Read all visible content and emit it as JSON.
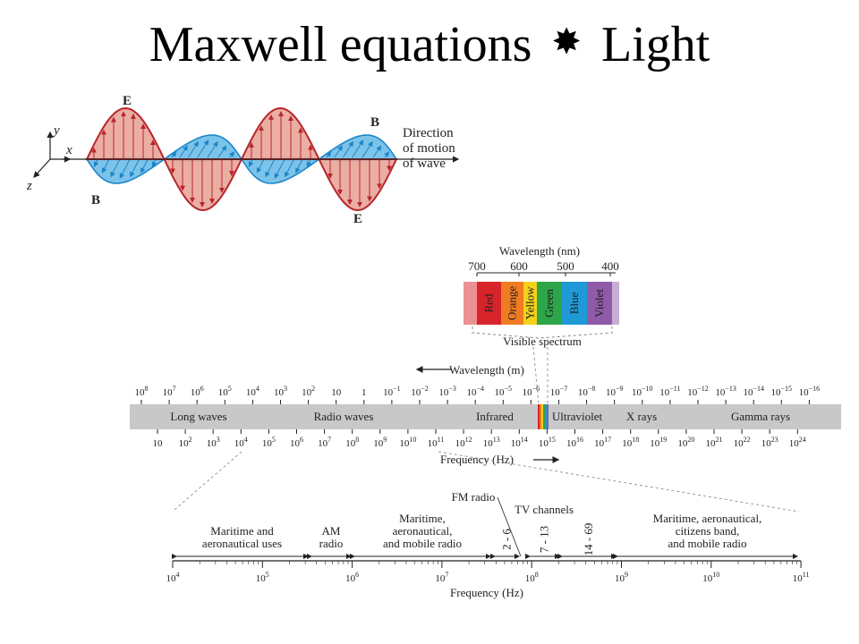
{
  "slide": {
    "title_left": "Maxwell equations",
    "title_symbol": "✸",
    "title_right": "Light"
  },
  "wave": {
    "E": "E",
    "B": "B",
    "x": "x",
    "y": "y",
    "z": "z",
    "direction": [
      "Direction",
      "of motion",
      "of wave"
    ]
  },
  "visible": {
    "axis_title": "Wavelength (nm)",
    "ticks": [
      "700",
      "600",
      "500",
      "400"
    ],
    "bands": [
      {
        "name": "Red",
        "color": "#d7242a"
      },
      {
        "name": "Orange",
        "color": "#f07b22"
      },
      {
        "name": "Yellow",
        "color": "#f2d21a"
      },
      {
        "name": "Green",
        "color": "#2fa54a"
      },
      {
        "name": "Blue",
        "color": "#1f9ad6"
      },
      {
        "name": "Violet",
        "color": "#8f5aa8"
      }
    ],
    "caption": "Visible spectrum"
  },
  "spectrum": {
    "wavelength_label": "Wavelength (m)",
    "frequency_label": "Frequency (Hz)",
    "wl_ticks": [
      {
        "b": "10",
        "e": "8"
      },
      {
        "b": "10",
        "e": "7"
      },
      {
        "b": "10",
        "e": "6"
      },
      {
        "b": "10",
        "e": "5"
      },
      {
        "b": "10",
        "e": "4"
      },
      {
        "b": "10",
        "e": "3"
      },
      {
        "b": "10",
        "e": "2"
      },
      {
        "b": "10",
        "e": ""
      },
      {
        "b": "1",
        "e": ""
      },
      {
        "b": "10",
        "e": "−1"
      },
      {
        "b": "10",
        "e": "−2"
      },
      {
        "b": "10",
        "e": "−3"
      },
      {
        "b": "10",
        "e": "−4"
      },
      {
        "b": "10",
        "e": "−5"
      },
      {
        "b": "10",
        "e": "−6"
      },
      {
        "b": "10",
        "e": "−7"
      },
      {
        "b": "10",
        "e": "−8"
      },
      {
        "b": "10",
        "e": "−9"
      },
      {
        "b": "10",
        "e": "−10"
      },
      {
        "b": "10",
        "e": "−11"
      },
      {
        "b": "10",
        "e": "−12"
      },
      {
        "b": "10",
        "e": "−13"
      },
      {
        "b": "10",
        "e": "−14"
      },
      {
        "b": "10",
        "e": "−15"
      },
      {
        "b": "10",
        "e": "−16"
      }
    ],
    "freq_ticks": [
      {
        "b": "10",
        "e": ""
      },
      {
        "b": "10",
        "e": "2"
      },
      {
        "b": "10",
        "e": "3"
      },
      {
        "b": "10",
        "e": "4"
      },
      {
        "b": "10",
        "e": "5"
      },
      {
        "b": "10",
        "e": "6"
      },
      {
        "b": "10",
        "e": "7"
      },
      {
        "b": "10",
        "e": "8"
      },
      {
        "b": "10",
        "e": "9"
      },
      {
        "b": "10",
        "e": "10"
      },
      {
        "b": "10",
        "e": "11"
      },
      {
        "b": "10",
        "e": "12"
      },
      {
        "b": "10",
        "e": "13"
      },
      {
        "b": "10",
        "e": "14"
      },
      {
        "b": "10",
        "e": "15"
      },
      {
        "b": "10",
        "e": "16"
      },
      {
        "b": "10",
        "e": "17"
      },
      {
        "b": "10",
        "e": "18"
      },
      {
        "b": "10",
        "e": "19"
      },
      {
        "b": "10",
        "e": "20"
      },
      {
        "b": "10",
        "e": "21"
      },
      {
        "b": "10",
        "e": "22"
      },
      {
        "b": "10",
        "e": "23"
      },
      {
        "b": "10",
        "e": "24"
      }
    ],
    "regions": [
      "Long waves",
      "Radio waves",
      "Infrared",
      "Ultraviolet",
      "X rays",
      "Gamma rays"
    ]
  },
  "radio": {
    "frequency_label": "Frequency (Hz)",
    "fm_label": "FM radio",
    "tv_label": "TV channels",
    "ticks": [
      {
        "b": "10",
        "e": "4"
      },
      {
        "b": "10",
        "e": "5"
      },
      {
        "b": "10",
        "e": "6"
      },
      {
        "b": "10",
        "e": "7"
      },
      {
        "b": "10",
        "e": "8"
      },
      {
        "b": "10",
        "e": "9"
      },
      {
        "b": "10",
        "e": "10"
      },
      {
        "b": "10",
        "e": "11"
      }
    ],
    "bands": [
      [
        "Maritime and",
        "aeronautical uses"
      ],
      [
        "AM",
        "radio"
      ],
      [
        "Maritime,",
        "aeronautical,",
        "and mobile radio"
      ],
      [
        "Maritime, aeronautical,",
        "citizens band,",
        "and mobile radio"
      ]
    ],
    "channels": [
      "2 - 6",
      "7 - 13",
      "14 - 69"
    ]
  },
  "colors": {
    "e_fill": "#e9a79b",
    "e_stroke": "#b8262c",
    "b_fill": "#7cc3ea",
    "b_stroke": "#1b86c9",
    "bar": "#c8c8c8"
  }
}
